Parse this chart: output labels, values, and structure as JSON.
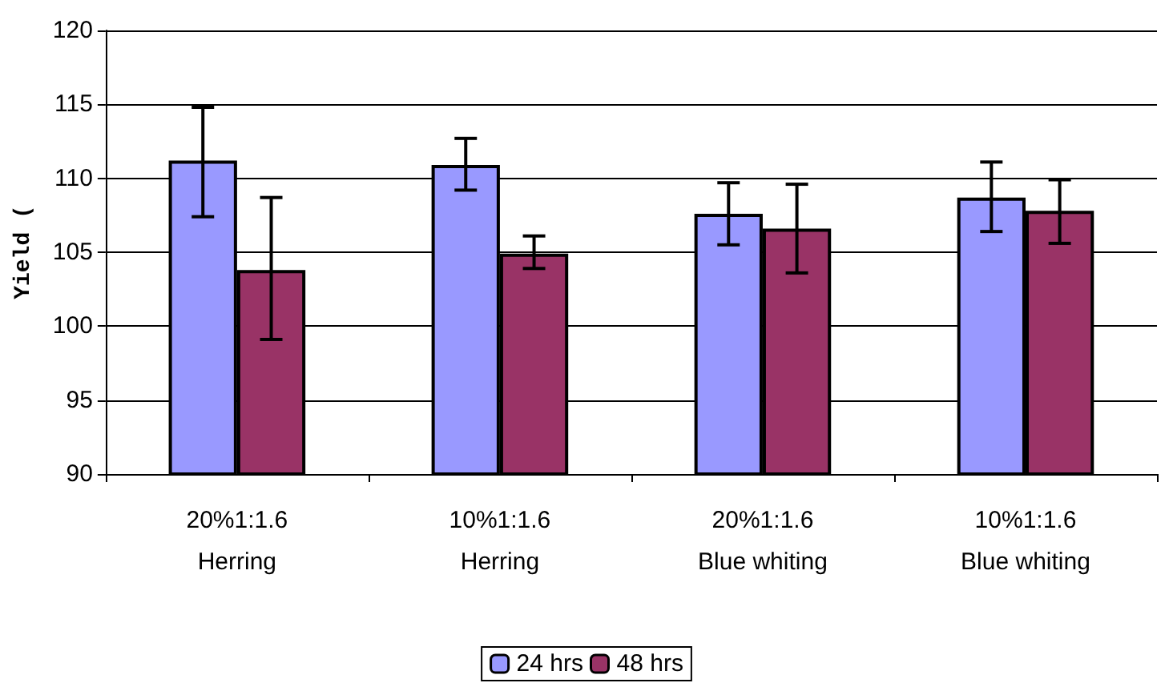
{
  "chart_data": {
    "type": "bar",
    "ylabel": "Yield (",
    "categories": [
      "20%1:1.6\nHerring",
      "10%1:1.6\nHerring",
      "20%1:1.6\nBlue whiting",
      "10%1:1.6\nBlue whiting"
    ],
    "series": [
      {
        "name": "24 hrs",
        "color": "#9999ff",
        "values": [
          111.2,
          110.9,
          107.6,
          108.7
        ],
        "errors": [
          [
            107.4,
            114.8
          ],
          [
            109.2,
            112.7
          ],
          [
            105.5,
            109.7
          ],
          [
            106.4,
            111.1
          ]
        ]
      },
      {
        "name": "48 hrs",
        "color": "#993366",
        "values": [
          103.8,
          104.9,
          106.6,
          107.8
        ],
        "errors": [
          [
            99.1,
            108.7
          ],
          [
            103.9,
            106.1
          ],
          [
            103.6,
            109.6
          ],
          [
            105.6,
            109.9
          ]
        ]
      }
    ],
    "ylim": [
      90,
      120
    ],
    "yticks": [
      90,
      95,
      100,
      105,
      110,
      115,
      120
    ],
    "grid": "y",
    "legend": "bottom"
  }
}
